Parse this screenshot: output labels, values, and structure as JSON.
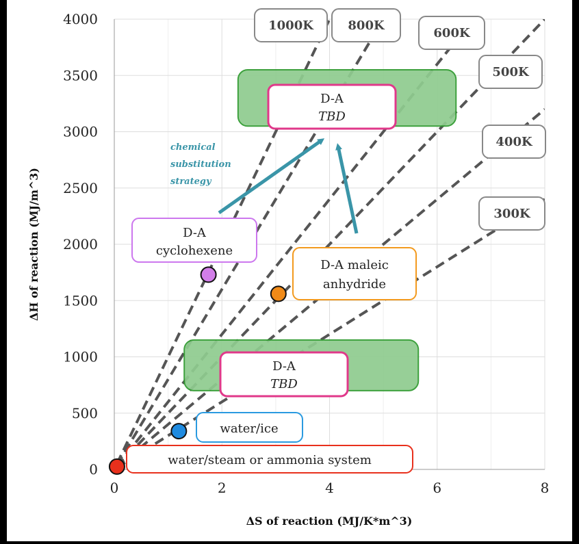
{
  "chart_data": {
    "type": "scatter",
    "xlabel": "ΔS of reaction (MJ/K*m^3)",
    "ylabel": "ΔH of reaction (MJ/m^3)",
    "xlim": [
      0,
      8
    ],
    "ylim": [
      0,
      4000
    ],
    "x_ticks": [
      "0",
      "2",
      "4",
      "6",
      "8"
    ],
    "y_ticks": [
      "0",
      "500",
      "1000",
      "1500",
      "2000",
      "2500",
      "3000",
      "3500",
      "4000"
    ],
    "grid": true,
    "temperature_lines": [
      {
        "label": "1000K",
        "slope": 1000
      },
      {
        "label": "800K",
        "slope": 800
      },
      {
        "label": "600K",
        "slope": 600
      },
      {
        "label": "500K",
        "slope": 500
      },
      {
        "label": "400K",
        "slope": 400
      },
      {
        "label": "300K",
        "slope": 300
      }
    ],
    "points": [
      {
        "label": "water/steam or ammonia system",
        "x": 0.05,
        "y": 25,
        "color": "#e8301c"
      },
      {
        "label": "water/ice",
        "x": 1.2,
        "y": 340,
        "color": "#1f8be0"
      },
      {
        "label": "D-A cyclohexene",
        "x": 1.75,
        "y": 1730,
        "color": "#d27ee8"
      },
      {
        "label": "D-A maleic anhydride",
        "x": 3.05,
        "y": 1560,
        "color": "#f08a18"
      }
    ],
    "regions": [
      {
        "line1": "D-A",
        "line2": "TBD",
        "x": [
          2.3,
          6.35
        ],
        "y": [
          3050,
          3550
        ]
      },
      {
        "line1": "D-A",
        "line2": "TBD",
        "x": [
          1.3,
          5.65
        ],
        "y": [
          700,
          1150
        ]
      }
    ],
    "annotation": "chemical substitution strategy",
    "colors": {
      "region_fill": "#8fcc8f",
      "region_border": "#2e9a2e",
      "tbd_border": "#e0388a",
      "temp_border": "#888888",
      "arrow": "#3a95a8",
      "dash": "#555555",
      "cyclohexene_border": "#cc77ee",
      "maleic_border": "#f39a1e",
      "ice_border": "#2a9ae0",
      "steam_border": "#e8301c"
    }
  }
}
